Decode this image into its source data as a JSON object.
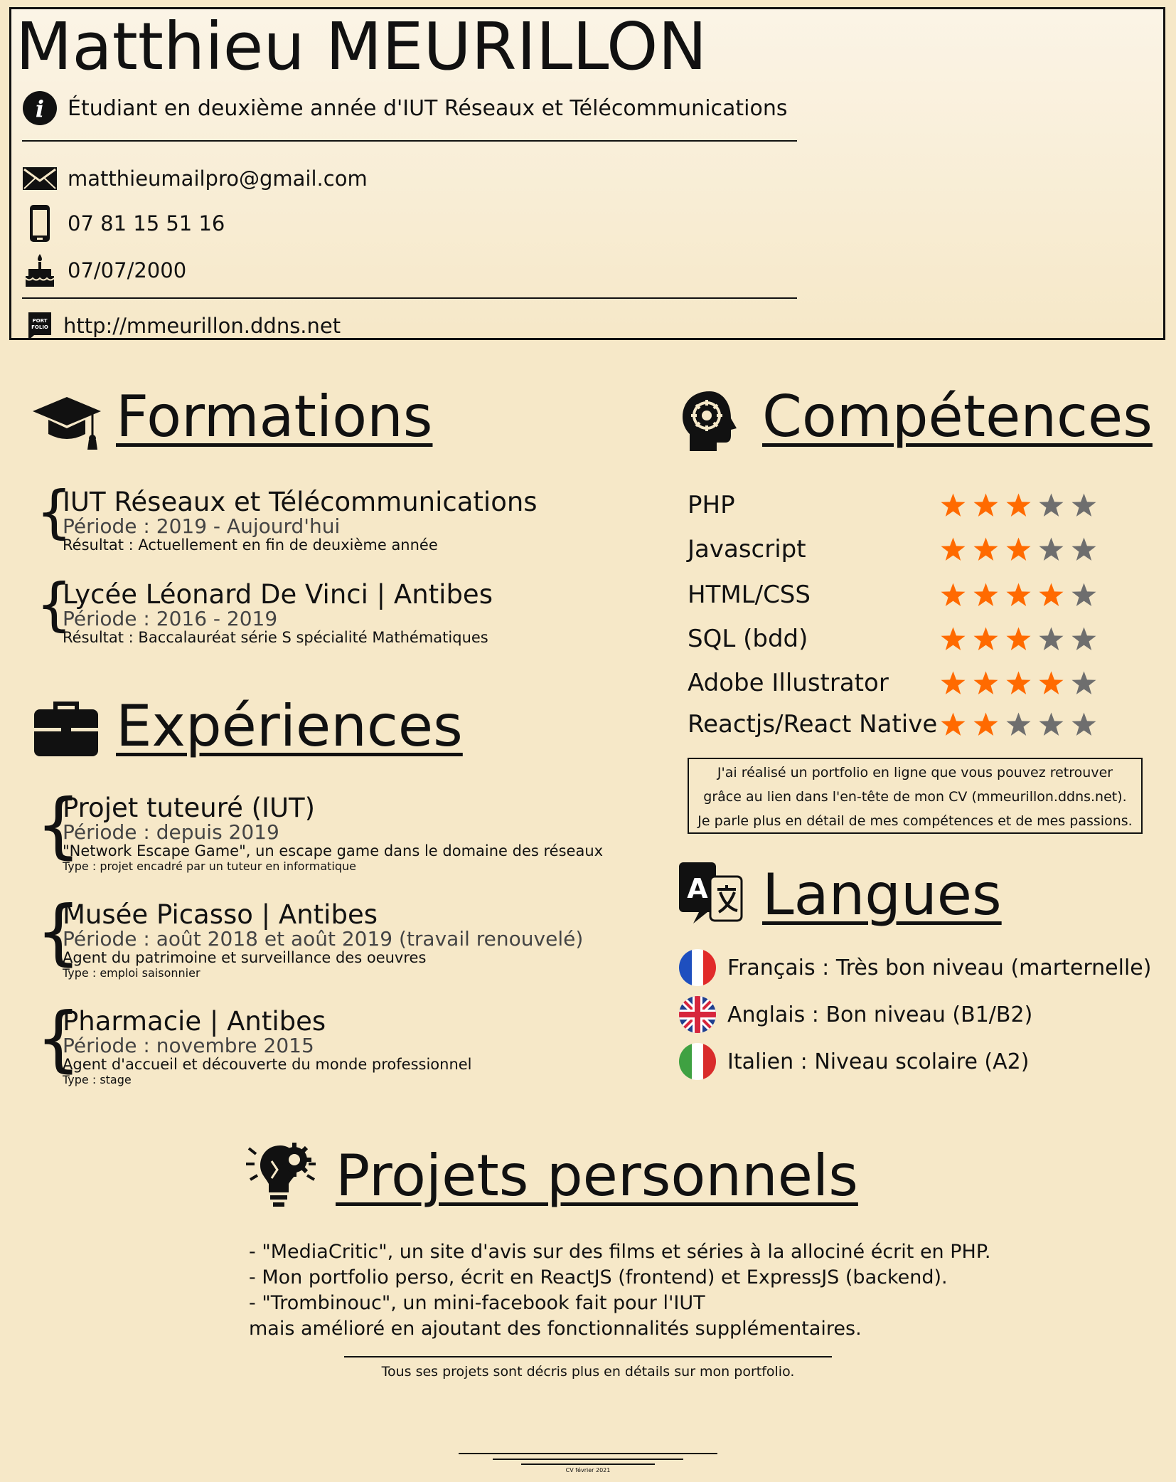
{
  "header": {
    "name": "Matthieu MEURILLON",
    "subtitle": "Étudiant en deuxième année d'IUT Réseaux et Télécommunications",
    "email": "matthieumailpro@gmail.com",
    "phone": "07 81 15 51 16",
    "birthdate": "07/07/2000",
    "portfolio_url": "http://mmeurillon.ddns.net",
    "portfolio_badge": [
      "PORT",
      "FOLIO"
    ]
  },
  "formations": {
    "title": "Formations",
    "items": [
      {
        "title": "IUT Réseaux et Télécommunications",
        "period": "Période : 2019 - Aujourd'hui",
        "result": "Résultat :  Actuellement en fin de deuxième année"
      },
      {
        "title": "Lycée Léonard De Vinci | Antibes",
        "period": "Période : 2016 - 2019",
        "result": "Résultat : Baccalauréat série S spécialité Mathématiques"
      }
    ]
  },
  "experiences": {
    "title": "Expériences",
    "items": [
      {
        "title": "Projet tuteuré (IUT)",
        "period": "Période : depuis 2019",
        "desc": "\"Network Escape Game\", un escape game dans le domaine des réseaux",
        "type": "Type : projet encadré par un tuteur en informatique"
      },
      {
        "title": "Musée Picasso | Antibes",
        "period": "Période : août 2018 et août 2019 (travail renouvelé)",
        "desc": "Agent du patrimoine et surveillance des oeuvres",
        "type": "Type : emploi saisonnier"
      },
      {
        "title": "Pharmacie | Antibes",
        "period": "Période : novembre 2015",
        "desc": "Agent d'accueil et découverte du monde professionnel",
        "type": "Type : stage"
      }
    ]
  },
  "competences": {
    "title": "Compétences",
    "max_stars": 5,
    "star_colors": {
      "filled": "#ff6a00",
      "empty": "#6e6e6e"
    },
    "skills": [
      {
        "name": "PHP",
        "rating": 3
      },
      {
        "name": "Javascript",
        "rating": 3
      },
      {
        "name": "HTML/CSS",
        "rating": 4
      },
      {
        "name": "SQL (bdd)",
        "rating": 3
      },
      {
        "name": "Adobe Illustrator",
        "rating": 4
      },
      {
        "name": "Reactjs/React Native",
        "rating": 2
      }
    ],
    "note_lines": [
      "J'ai réalisé un portfolio en ligne que vous pouvez retrouver",
      "grâce au lien dans l'en-tête de mon CV (mmeurillon.ddns.net).",
      "Je parle plus en détail de mes compétences et de mes passions."
    ]
  },
  "langues": {
    "title": "Langues",
    "icon_letter": "A",
    "items": [
      {
        "flag": "france-flag",
        "text": "Français : Très bon niveau (marternelle)"
      },
      {
        "flag": "uk-flag",
        "text": "Anglais : Bon niveau (B1/B2)"
      },
      {
        "flag": "italy-flag",
        "text": "Italien : Niveau scolaire (A2)"
      }
    ]
  },
  "projets": {
    "title": "Projets personnels",
    "lines": [
      "- \"MediaCritic\", un site d'avis sur des films et séries à la allociné écrit en PHP.",
      "- Mon portfolio perso, écrit en ReactJS (frontend) et ExpressJS (backend).",
      "- \"Trombinouc\", un mini-facebook fait pour l'IUT",
      "mais amélioré en ajoutant des fonctionnalités supplémentaires."
    ],
    "note": "Tous ses projets sont décris plus en détails sur mon portfolio."
  },
  "footer": {
    "text": "CV février 2021"
  }
}
